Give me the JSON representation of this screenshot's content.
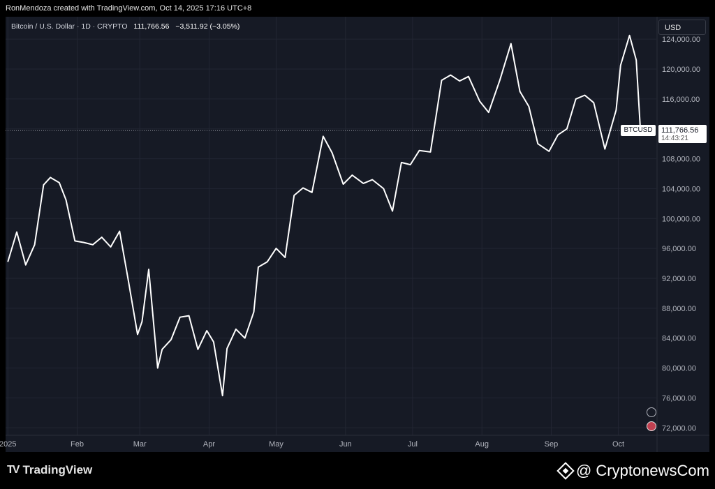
{
  "header": {
    "credit": "RonMendoza created with TradingView.com, Oct 14, 2025 17:16 UTC+8"
  },
  "legend": {
    "symbol": "Bitcoin / U.S. Dollar · 1D · CRYPTO",
    "price": "111,766.56",
    "change": "−3,511.92 (−3.05%)"
  },
  "currency_button": "USD",
  "last_price": {
    "symbol": "BTCUSD",
    "value": "111,766.56",
    "countdown": "14:43:21"
  },
  "footer": {
    "brand": "TradingView",
    "brand_mark": "TV",
    "watermark": "@ CryptonewsCom"
  },
  "colors": {
    "background": "#161a25",
    "line": "#ffffff",
    "grid": "#222633"
  },
  "chart_data": {
    "type": "line",
    "title": "",
    "series": [
      {
        "x": [
          "2025-01-01",
          "2025-01-05",
          "2025-01-09",
          "2025-01-13",
          "2025-01-17",
          "2025-01-20",
          "2025-01-24",
          "2025-01-27",
          "2025-01-31",
          "2025-02-04",
          "2025-02-08",
          "2025-02-12",
          "2025-02-16",
          "2025-02-20",
          "2025-02-24",
          "2025-02-28",
          "2025-03-02",
          "2025-03-05",
          "2025-03-09",
          "2025-03-11",
          "2025-03-15",
          "2025-03-19",
          "2025-03-23",
          "2025-03-27",
          "2025-03-31",
          "2025-04-03",
          "2025-04-07",
          "2025-04-09",
          "2025-04-13",
          "2025-04-17",
          "2025-04-21",
          "2025-04-23",
          "2025-04-27",
          "2025-05-01",
          "2025-05-05",
          "2025-05-09",
          "2025-05-13",
          "2025-05-17",
          "2025-05-22",
          "2025-05-26",
          "2025-05-31",
          "2025-06-04",
          "2025-06-09",
          "2025-06-13",
          "2025-06-18",
          "2025-06-22",
          "2025-06-26",
          "2025-06-30",
          "2025-07-04",
          "2025-07-09",
          "2025-07-14",
          "2025-07-18",
          "2025-07-22",
          "2025-07-26",
          "2025-07-31",
          "2025-08-04",
          "2025-08-09",
          "2025-08-14",
          "2025-08-18",
          "2025-08-22",
          "2025-08-26",
          "2025-08-31",
          "2025-09-04",
          "2025-09-08",
          "2025-09-12",
          "2025-09-16",
          "2025-09-20",
          "2025-09-25",
          "2025-09-30",
          "2025-10-02",
          "2025-10-06",
          "2025-10-09",
          "2025-10-11",
          "2025-10-14"
        ],
        "values": [
          94200,
          98200,
          93800,
          96500,
          104500,
          105500,
          104800,
          102500,
          97000,
          96800,
          96500,
          97500,
          96200,
          98300,
          91500,
          84500,
          86200,
          93200,
          80000,
          82500,
          83800,
          86800,
          87000,
          82500,
          85000,
          83500,
          76300,
          82600,
          85200,
          84000,
          87500,
          93500,
          94200,
          96000,
          94800,
          103100,
          104100,
          103500,
          111000,
          108800,
          104600,
          105800,
          104700,
          105200,
          104000,
          101000,
          107500,
          107200,
          109100,
          108900,
          118500,
          119200,
          118400,
          119000,
          115700,
          114200,
          118500,
          123400,
          117000,
          115000,
          110000,
          109000,
          111200,
          112000,
          116000,
          116500,
          115500,
          109300,
          114500,
          120500,
          124500,
          121200,
          111200,
          111766
        ]
      }
    ],
    "x_ticks": [
      "2025",
      "Feb",
      "Mar",
      "Apr",
      "May",
      "Jun",
      "Jul",
      "Aug",
      "Sep",
      "Oct"
    ],
    "y_ticks": [
      "124,000.00",
      "120,000.00",
      "116,000.00",
      "112,000.00",
      "108,000.00",
      "104,000.00",
      "100,000.00",
      "96,000.00",
      "92,000.00",
      "88,000.00",
      "84,000.00",
      "80,000.00",
      "76,000.00",
      "72,000.00"
    ],
    "ylim": [
      71000,
      127000
    ],
    "xlim": [
      "2024-12-31",
      "2025-10-18"
    ],
    "last_value": 111766.56,
    "grid": true,
    "y_axis_side": "right"
  }
}
